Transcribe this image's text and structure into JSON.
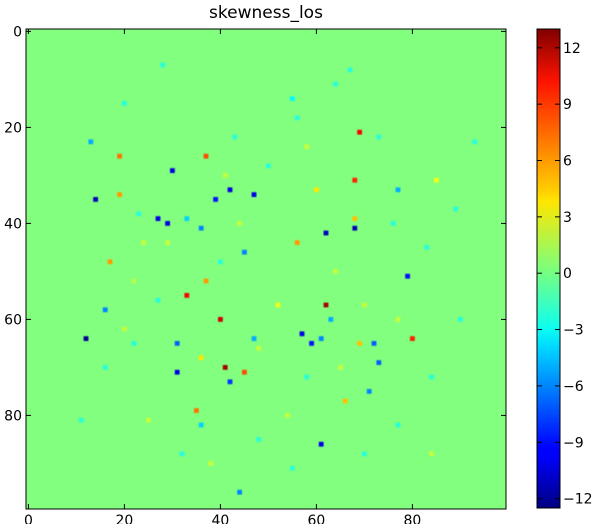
{
  "chart_data": {
    "type": "heatmap",
    "title": "skewness_los",
    "xlabel": "",
    "ylabel": "",
    "grid_size": [
      100,
      100
    ],
    "xlim": [
      0,
      99
    ],
    "ylim": [
      99,
      0
    ],
    "x_ticks": [
      0,
      20,
      40,
      60,
      80
    ],
    "y_ticks": [
      0,
      20,
      40,
      60,
      80
    ],
    "colorbar": {
      "colormap": "jet",
      "vmin": -12.5,
      "vmax": 13,
      "ticks": [
        12,
        9,
        6,
        3,
        0,
        -3,
        -6,
        -9,
        -12
      ]
    },
    "background_value": 0.3,
    "points": [
      {
        "x": 12,
        "y": 64,
        "v": -12
      },
      {
        "x": 14,
        "y": 35,
        "v": -11
      },
      {
        "x": 30,
        "y": 29,
        "v": -10
      },
      {
        "x": 31,
        "y": 71,
        "v": -10
      },
      {
        "x": 27,
        "y": 39,
        "v": -10
      },
      {
        "x": 29,
        "y": 40,
        "v": -10
      },
      {
        "x": 42,
        "y": 33,
        "v": -10
      },
      {
        "x": 47,
        "y": 34,
        "v": -10
      },
      {
        "x": 39,
        "y": 35,
        "v": -9
      },
      {
        "x": 62,
        "y": 42,
        "v": -11
      },
      {
        "x": 68,
        "y": 41,
        "v": -11
      },
      {
        "x": 79,
        "y": 51,
        "v": -9
      },
      {
        "x": 57,
        "y": 63,
        "v": -10
      },
      {
        "x": 59,
        "y": 65,
        "v": -9
      },
      {
        "x": 61,
        "y": 86,
        "v": -10
      },
      {
        "x": 42,
        "y": 73,
        "v": -8
      },
      {
        "x": 31,
        "y": 65,
        "v": -7
      },
      {
        "x": 45,
        "y": 46,
        "v": -6
      },
      {
        "x": 36,
        "y": 41,
        "v": -6
      },
      {
        "x": 72,
        "y": 65,
        "v": -7
      },
      {
        "x": 73,
        "y": 69,
        "v": -7
      },
      {
        "x": 71,
        "y": 75,
        "v": -6
      },
      {
        "x": 16,
        "y": 58,
        "v": -6
      },
      {
        "x": 13,
        "y": 23,
        "v": -5
      },
      {
        "x": 44,
        "y": 96,
        "v": -6
      },
      {
        "x": 61,
        "y": 64,
        "v": -6
      },
      {
        "x": 77,
        "y": 33,
        "v": -5
      },
      {
        "x": 33,
        "y": 39,
        "v": -4
      },
      {
        "x": 55,
        "y": 14,
        "v": -3
      },
      {
        "x": 47,
        "y": 64,
        "v": -5
      },
      {
        "x": 63,
        "y": 60,
        "v": -5
      },
      {
        "x": 36,
        "y": 82,
        "v": -4
      },
      {
        "x": 62,
        "y": 57,
        "v": 12
      },
      {
        "x": 41,
        "y": 70,
        "v": 12
      },
      {
        "x": 40,
        "y": 60,
        "v": 11
      },
      {
        "x": 33,
        "y": 55,
        "v": 10
      },
      {
        "x": 69,
        "y": 21,
        "v": 10
      },
      {
        "x": 80,
        "y": 64,
        "v": 9
      },
      {
        "x": 68,
        "y": 31,
        "v": 9
      },
      {
        "x": 37,
        "y": 26,
        "v": 8
      },
      {
        "x": 19,
        "y": 26,
        "v": 7
      },
      {
        "x": 45,
        "y": 71,
        "v": 8
      },
      {
        "x": 17,
        "y": 48,
        "v": 6
      },
      {
        "x": 19,
        "y": 34,
        "v": 6
      },
      {
        "x": 35,
        "y": 79,
        "v": 7
      },
      {
        "x": 56,
        "y": 44,
        "v": 6
      },
      {
        "x": 69,
        "y": 65,
        "v": 5
      },
      {
        "x": 37,
        "y": 52,
        "v": 6
      },
      {
        "x": 66,
        "y": 77,
        "v": 5
      },
      {
        "x": 68,
        "y": 39,
        "v": 5
      },
      {
        "x": 60,
        "y": 33,
        "v": 4
      },
      {
        "x": 36,
        "y": 68,
        "v": 4
      },
      {
        "x": 85,
        "y": 31,
        "v": 3
      },
      {
        "x": 52,
        "y": 57,
        "v": 3
      },
      {
        "x": 24,
        "y": 44,
        "v": 2
      },
      {
        "x": 29,
        "y": 44,
        "v": 2
      },
      {
        "x": 41,
        "y": 30,
        "v": 2
      },
      {
        "x": 58,
        "y": 24,
        "v": 2
      },
      {
        "x": 64,
        "y": 50,
        "v": 2
      },
      {
        "x": 48,
        "y": 66,
        "v": 2
      },
      {
        "x": 25,
        "y": 81,
        "v": 2
      },
      {
        "x": 54,
        "y": 80,
        "v": 2
      },
      {
        "x": 77,
        "y": 60,
        "v": 2
      },
      {
        "x": 70,
        "y": 57,
        "v": 2
      },
      {
        "x": 44,
        "y": 40,
        "v": 2
      },
      {
        "x": 20,
        "y": 62,
        "v": 2
      },
      {
        "x": 38,
        "y": 90,
        "v": 2
      },
      {
        "x": 65,
        "y": 70,
        "v": 2
      },
      {
        "x": 84,
        "y": 88,
        "v": 2
      },
      {
        "x": 22,
        "y": 52,
        "v": 1.5
      },
      {
        "x": 56,
        "y": 18,
        "v": -2
      },
      {
        "x": 43,
        "y": 22,
        "v": -2
      },
      {
        "x": 64,
        "y": 11,
        "v": -2
      },
      {
        "x": 20,
        "y": 15,
        "v": -2
      },
      {
        "x": 28,
        "y": 7,
        "v": -2
      },
      {
        "x": 67,
        "y": 8,
        "v": -2
      },
      {
        "x": 23,
        "y": 38,
        "v": -2
      },
      {
        "x": 76,
        "y": 40,
        "v": -2
      },
      {
        "x": 83,
        "y": 45,
        "v": -2
      },
      {
        "x": 90,
        "y": 60,
        "v": -2
      },
      {
        "x": 84,
        "y": 72,
        "v": -2
      },
      {
        "x": 77,
        "y": 82,
        "v": -2
      },
      {
        "x": 70,
        "y": 88,
        "v": -2
      },
      {
        "x": 55,
        "y": 91,
        "v": -2
      },
      {
        "x": 11,
        "y": 81,
        "v": -2
      },
      {
        "x": 16,
        "y": 70,
        "v": -2
      },
      {
        "x": 22,
        "y": 65,
        "v": -2
      },
      {
        "x": 27,
        "y": 56,
        "v": -2
      },
      {
        "x": 50,
        "y": 28,
        "v": -2
      },
      {
        "x": 73,
        "y": 22,
        "v": -2
      },
      {
        "x": 93,
        "y": 23,
        "v": -2
      },
      {
        "x": 89,
        "y": 37,
        "v": -2
      },
      {
        "x": 32,
        "y": 88,
        "v": -2
      },
      {
        "x": 48,
        "y": 85,
        "v": -2
      },
      {
        "x": 58,
        "y": 72,
        "v": -2
      },
      {
        "x": 40,
        "y": 48,
        "v": -2
      }
    ]
  }
}
